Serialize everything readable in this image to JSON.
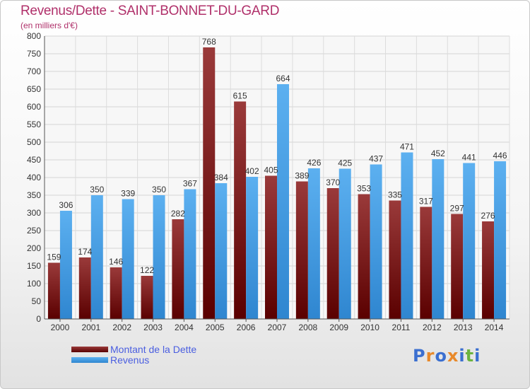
{
  "chart_data": {
    "type": "bar",
    "title": "Revenus/Dette - SAINT-BONNET-DU-GARD",
    "subtitle": "(en milliers d'€)",
    "categories": [
      "2000",
      "2001",
      "2002",
      "2003",
      "2004",
      "2005",
      "2006",
      "2007",
      "2008",
      "2009",
      "2010",
      "2011",
      "2012",
      "2013",
      "2014"
    ],
    "series": [
      {
        "name": "Montant de la Dette",
        "color": "#7a1010",
        "values": [
          159,
          174,
          146,
          122,
          282,
          768,
          615,
          405,
          389,
          370,
          353,
          335,
          317,
          297,
          276
        ]
      },
      {
        "name": "Revenus",
        "color": "#4aa0e6",
        "values": [
          306,
          350,
          339,
          350,
          367,
          384,
          402,
          664,
          426,
          425,
          437,
          471,
          452,
          441,
          446
        ]
      }
    ],
    "yticks": [
      0,
      50,
      100,
      150,
      200,
      250,
      300,
      350,
      400,
      450,
      500,
      550,
      600,
      650,
      700,
      750,
      800
    ],
    "ylim": [
      0,
      800
    ],
    "grid": true,
    "legend_position": "bottom-left"
  },
  "legend": {
    "items": [
      {
        "label": "Montant de la Dette",
        "color": "#7a1010"
      },
      {
        "label": "Revenus",
        "color": "#4aa0e6"
      }
    ]
  },
  "logo": {
    "text": "Proxiti",
    "letters": [
      "P",
      "r",
      "o",
      "x",
      "i",
      "t",
      "i"
    ],
    "colors": [
      "#3b6fd0",
      "#e8892a",
      "#3b6fd0",
      "#e8892a",
      "#3b6fd0",
      "#6cb33f",
      "#3b6fd0"
    ]
  }
}
